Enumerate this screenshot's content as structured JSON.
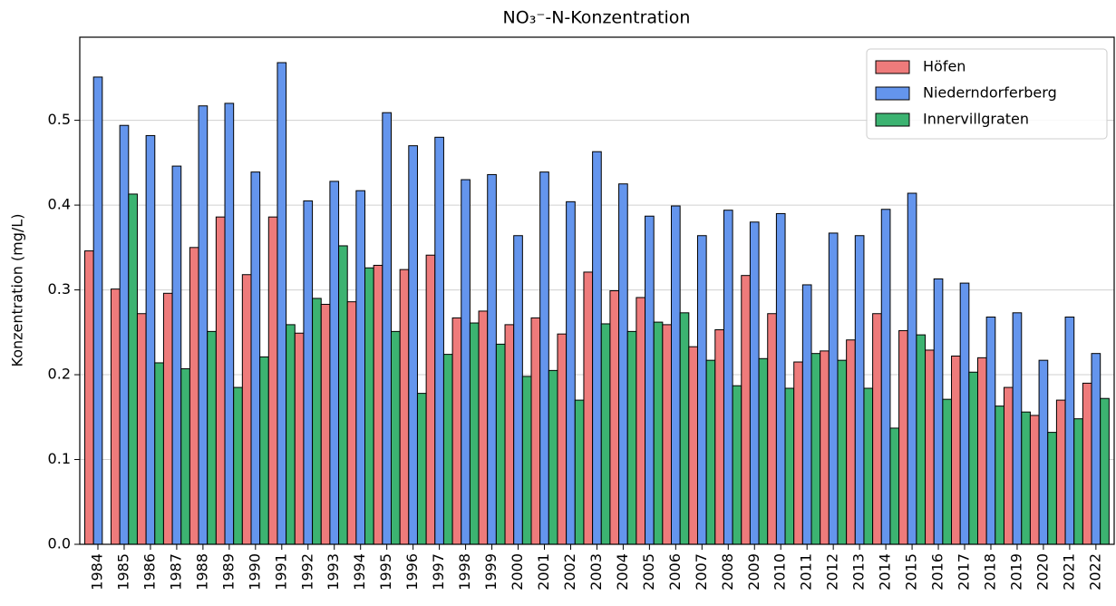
{
  "chart_data": {
    "type": "bar",
    "title": "NO₃⁻-N-Konzentration",
    "y_label": "Konzentration (mg/L)",
    "categories": [
      "1984",
      "1985",
      "1986",
      "1987",
      "1988",
      "1989",
      "1990",
      "1991",
      "1992",
      "1993",
      "1994",
      "1995",
      "1996",
      "1997",
      "1998",
      "1999",
      "2000",
      "2001",
      "2002",
      "2003",
      "2004",
      "2005",
      "2006",
      "2007",
      "2008",
      "2009",
      "2010",
      "2011",
      "2012",
      "2013",
      "2014",
      "2015",
      "2016",
      "2017",
      "2018",
      "2019",
      "2020",
      "2021",
      "2022"
    ],
    "series": [
      {
        "name": "Höfen",
        "color": "#ee7b7b",
        "values": [
          0.346,
          0.301,
          0.272,
          0.296,
          0.35,
          0.386,
          0.318,
          0.386,
          0.249,
          0.283,
          0.286,
          0.329,
          0.324,
          0.341,
          0.267,
          0.275,
          0.259,
          0.267,
          0.248,
          0.321,
          0.299,
          0.291,
          0.259,
          0.233,
          0.253,
          0.317,
          0.272,
          0.215,
          0.228,
          0.241,
          0.272,
          0.252,
          0.229,
          0.222,
          0.22,
          0.185,
          0.152,
          0.17,
          0.19
        ]
      },
      {
        "name": "Niederndorferberg",
        "color": "#6495ed",
        "values": [
          0.551,
          0.494,
          0.482,
          0.446,
          0.517,
          0.52,
          0.439,
          0.568,
          0.405,
          0.428,
          0.417,
          0.509,
          0.47,
          0.48,
          0.43,
          0.436,
          0.364,
          0.439,
          0.404,
          0.463,
          0.425,
          0.387,
          0.399,
          0.364,
          0.394,
          0.38,
          0.39,
          0.306,
          0.367,
          0.364,
          0.395,
          0.414,
          0.313,
          0.308,
          0.268,
          0.273,
          0.217,
          0.268,
          0.225
        ]
      },
      {
        "name": "Innervillgraten",
        "color": "#3cb371",
        "values": [
          null,
          0.413,
          0.214,
          0.207,
          0.251,
          0.185,
          0.221,
          0.259,
          0.29,
          0.352,
          0.326,
          0.251,
          0.178,
          0.224,
          0.261,
          0.236,
          0.198,
          0.205,
          0.17,
          0.26,
          0.251,
          0.262,
          0.273,
          0.217,
          0.187,
          0.219,
          0.184,
          0.225,
          0.217,
          0.184,
          0.137,
          0.247,
          0.171,
          0.203,
          0.163,
          0.156,
          0.132,
          0.148,
          0.172
        ]
      }
    ],
    "ylim": [
      0,
      0.598
    ],
    "yticks": [
      {
        "value": 0,
        "label": "0.0"
      },
      0.1,
      0.2,
      0.3,
      0.4,
      0.5
    ],
    "grid": true,
    "legend": "upper-right"
  }
}
